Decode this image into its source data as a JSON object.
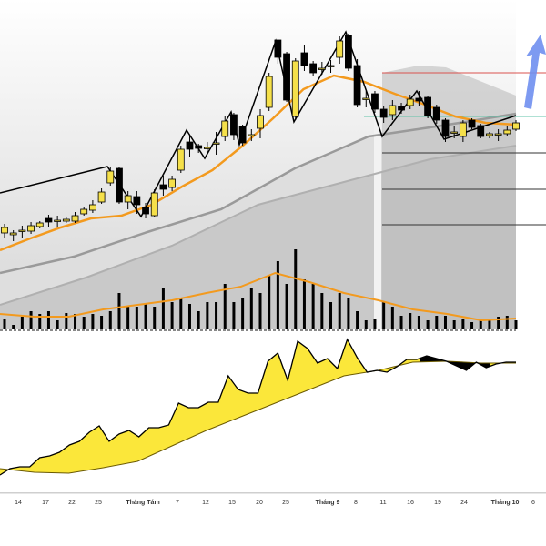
{
  "chart_data": {
    "type": "candlestick",
    "title": "",
    "price_units": "relative",
    "colors": {
      "up": "#f5e04a",
      "down": "#000000",
      "ma_fast": "#f39a1e",
      "ma_slow": "#9a9a9a",
      "macd_fill": "#fbe73a",
      "resistance": "#d9534f",
      "support": "#5fc3a8",
      "arrow": "#6f8ff0"
    },
    "x_tick_labels": [
      "14",
      "17",
      "22",
      "25",
      "Tháng Tám",
      "7",
      "12",
      "15",
      "20",
      "25",
      "Tháng 9",
      "8",
      "11",
      "16",
      "19",
      "24",
      "Tháng 10",
      "6"
    ],
    "candles": [
      {
        "o": 144,
        "c": 150,
        "h": 154,
        "l": 138,
        "v": 12
      },
      {
        "o": 142,
        "c": 144,
        "h": 147,
        "l": 135,
        "v": 5
      },
      {
        "o": 147,
        "c": 147,
        "h": 152,
        "l": 138,
        "v": 14
      },
      {
        "o": 146,
        "c": 152,
        "h": 156,
        "l": 143,
        "v": 20
      },
      {
        "o": 151,
        "c": 155,
        "h": 157,
        "l": 149,
        "v": 17
      },
      {
        "o": 160,
        "c": 156,
        "h": 164,
        "l": 150,
        "v": 20
      },
      {
        "o": 158,
        "c": 158,
        "h": 163,
        "l": 150,
        "v": 10
      },
      {
        "o": 157,
        "c": 159,
        "h": 161,
        "l": 155,
        "v": 18
      },
      {
        "o": 157,
        "c": 163,
        "h": 167,
        "l": 155,
        "v": 17
      },
      {
        "o": 165,
        "c": 170,
        "h": 173,
        "l": 163,
        "v": 14
      },
      {
        "o": 169,
        "c": 175,
        "h": 180,
        "l": 166,
        "v": 17
      },
      {
        "o": 178,
        "c": 189,
        "h": 193,
        "l": 176,
        "v": 15
      },
      {
        "o": 199,
        "c": 212,
        "h": 216,
        "l": 196,
        "v": 20
      },
      {
        "o": 215,
        "c": 178,
        "h": 217,
        "l": 176,
        "v": 40
      },
      {
        "o": 178,
        "c": 185,
        "h": 190,
        "l": 170,
        "v": 25
      },
      {
        "o": 184,
        "c": 175,
        "h": 190,
        "l": 165,
        "v": 25
      },
      {
        "o": 172,
        "c": 165,
        "h": 177,
        "l": 160,
        "v": 28
      },
      {
        "o": 163,
        "c": 188,
        "h": 192,
        "l": 161,
        "v": 25
      },
      {
        "o": 197,
        "c": 192,
        "h": 207,
        "l": 185,
        "v": 45
      },
      {
        "o": 194,
        "c": 203,
        "h": 207,
        "l": 190,
        "v": 30
      },
      {
        "o": 213,
        "c": 236,
        "h": 240,
        "l": 210,
        "v": 35
      },
      {
        "o": 244,
        "c": 236,
        "h": 250,
        "l": 228,
        "v": 28
      },
      {
        "o": 240,
        "c": 237,
        "h": 242,
        "l": 232,
        "v": 20
      },
      {
        "o": 238,
        "c": 238,
        "h": 244,
        "l": 232,
        "v": 30
      },
      {
        "o": 243,
        "c": 243,
        "h": 255,
        "l": 230,
        "v": 30
      },
      {
        "o": 250,
        "c": 267,
        "h": 272,
        "l": 245,
        "v": 50
      },
      {
        "o": 274,
        "c": 252,
        "h": 276,
        "l": 246,
        "v": 30
      },
      {
        "o": 261,
        "c": 243,
        "h": 263,
        "l": 240,
        "v": 35
      },
      {
        "o": 252,
        "c": 252,
        "h": 258,
        "l": 245,
        "v": 45
      },
      {
        "o": 259,
        "c": 273,
        "h": 280,
        "l": 248,
        "v": 40
      },
      {
        "o": 282,
        "c": 316,
        "h": 320,
        "l": 278,
        "v": 60
      },
      {
        "o": 356,
        "c": 337,
        "h": 356,
        "l": 330,
        "v": 75
      },
      {
        "o": 341,
        "c": 290,
        "h": 343,
        "l": 288,
        "v": 50
      },
      {
        "o": 272,
        "c": 333,
        "h": 336,
        "l": 268,
        "v": 88
      },
      {
        "o": 342,
        "c": 328,
        "h": 350,
        "l": 322,
        "v": 55
      },
      {
        "o": 330,
        "c": 320,
        "h": 333,
        "l": 316,
        "v": 50
      },
      {
        "o": 325,
        "c": 325,
        "h": 332,
        "l": 318,
        "v": 40
      },
      {
        "o": 327,
        "c": 328,
        "h": 334,
        "l": 320,
        "v": 30
      },
      {
        "o": 337,
        "c": 355,
        "h": 360,
        "l": 330,
        "v": 40
      },
      {
        "o": 361,
        "c": 325,
        "h": 363,
        "l": 322,
        "v": 35
      },
      {
        "o": 328,
        "c": 285,
        "h": 335,
        "l": 282,
        "v": 20
      },
      {
        "o": 292,
        "c": 292,
        "h": 300,
        "l": 282,
        "v": 10
      },
      {
        "o": 297,
        "c": 280,
        "h": 300,
        "l": 276,
        "v": 12
      },
      {
        "o": 280,
        "c": 271,
        "h": 284,
        "l": 265,
        "v": 30
      },
      {
        "o": 274,
        "c": 284,
        "h": 290,
        "l": 268,
        "v": 25
      },
      {
        "o": 283,
        "c": 279,
        "h": 287,
        "l": 275,
        "v": 15
      },
      {
        "o": 284,
        "c": 291,
        "h": 296,
        "l": 280,
        "v": 18
      },
      {
        "o": 292,
        "c": 289,
        "h": 300,
        "l": 284,
        "v": 15
      },
      {
        "o": 293,
        "c": 273,
        "h": 295,
        "l": 270,
        "v": 10
      },
      {
        "o": 282,
        "c": 268,
        "h": 285,
        "l": 264,
        "v": 15
      },
      {
        "o": 268,
        "c": 250,
        "h": 270,
        "l": 244,
        "v": 15
      },
      {
        "o": 255,
        "c": 255,
        "h": 262,
        "l": 248,
        "v": 10
      },
      {
        "o": 250,
        "c": 265,
        "h": 268,
        "l": 244,
        "v": 12
      },
      {
        "o": 268,
        "c": 260,
        "h": 270,
        "l": 258,
        "v": 8
      },
      {
        "o": 262,
        "c": 250,
        "h": 264,
        "l": 248,
        "v": 10
      },
      {
        "o": 251,
        "c": 253,
        "h": 255,
        "l": 248,
        "v": 10
      },
      {
        "o": 253,
        "c": 253,
        "h": 258,
        "l": 245,
        "v": 14
      },
      {
        "o": 253,
        "c": 257,
        "h": 262,
        "l": 251,
        "v": 15
      },
      {
        "o": 258,
        "c": 265,
        "h": 268,
        "l": 256,
        "v": 10
      }
    ],
    "ma_fast": [
      125,
      138,
      150,
      160,
      163,
      175,
      195,
      213,
      240,
      270,
      302,
      317,
      310,
      297,
      285,
      272,
      265,
      263
    ],
    "ma_slow_1": [
      100,
      118,
      145,
      170,
      215,
      250,
      262,
      275
    ],
    "ma_slow_2": [
      65,
      95,
      130,
      175,
      200,
      225,
      240
    ],
    "volume_ma": [
      17,
      14,
      14,
      22,
      27,
      32,
      40,
      47,
      62,
      52,
      40,
      32,
      22,
      17,
      10,
      12
    ],
    "zigzag": [
      188,
      217,
      162,
      257,
      226,
      277,
      241,
      355,
      266,
      365,
      250,
      300,
      247,
      273
    ],
    "macd": [
      -22,
      -15,
      -13,
      -13,
      -3,
      -1,
      3,
      11,
      15,
      25,
      32,
      15,
      23,
      27,
      20,
      30,
      30,
      33,
      57,
      52,
      52,
      58,
      58,
      87,
      72,
      68,
      68,
      103,
      112,
      82,
      125,
      117,
      101,
      106,
      95,
      127,
      107,
      91,
      93,
      91,
      97,
      105,
      105,
      109,
      106,
      103,
      98,
      93,
      102,
      96,
      100,
      102,
      102
    ],
    "macd_signal": [
      -15,
      -19,
      -20,
      -14,
      -7,
      10,
      27,
      42,
      57,
      72,
      87,
      93,
      102,
      103,
      101,
      101
    ],
    "levels": {
      "resistance": 320,
      "pivot": 272,
      "support_1": 232,
      "support_2": 192,
      "support_3": 153
    }
  }
}
